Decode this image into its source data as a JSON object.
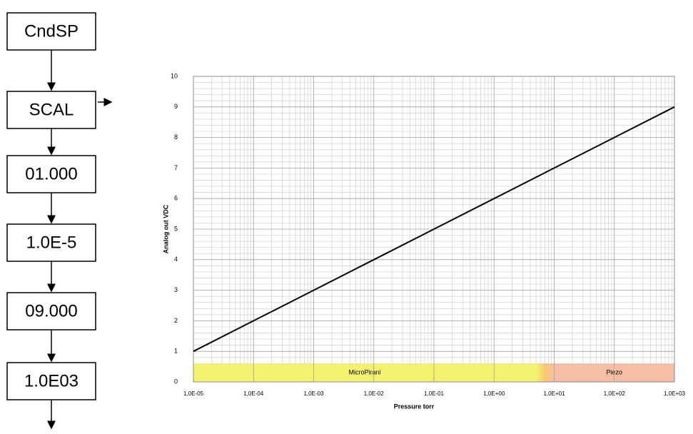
{
  "flow": {
    "nodes": [
      "CndSP",
      "SCAL",
      "01.000",
      "1.0E-5",
      "09.000",
      "1.0E03"
    ]
  },
  "chart_data": {
    "type": "line",
    "xscale": "log",
    "grid": true,
    "minor_grid": true,
    "x_label": "Pressure torr",
    "y_label": "Analog out VDC",
    "x": [
      1e-05,
      0.0001,
      0.001,
      0.01,
      0.1,
      1,
      10,
      100,
      1000
    ],
    "values": [
      1,
      2,
      3,
      4,
      5,
      6,
      7,
      8,
      9
    ],
    "color": "#000000",
    "xlim": [
      1e-05,
      1000
    ],
    "xticks": [
      {
        "value": 1e-05,
        "label": "1,0E-05"
      },
      {
        "value": 0.0001,
        "label": "1,0E-04"
      },
      {
        "value": 0.001,
        "label": "1,0E-03"
      },
      {
        "value": 0.01,
        "label": "1,0E-02"
      },
      {
        "value": 0.1,
        "label": "1,0E-01"
      },
      {
        "value": 1,
        "label": "1,0E+00"
      },
      {
        "value": 10,
        "label": "1,0E+01"
      },
      {
        "value": 100,
        "label": "1,0E+02"
      },
      {
        "value": 1000,
        "label": "1,0E+03"
      }
    ],
    "ylim": [
      0,
      10
    ],
    "yticks": [
      0,
      1,
      2,
      3,
      4,
      5,
      6,
      7,
      8,
      9,
      10
    ],
    "region_height": 0.6,
    "regions": [
      {
        "label": "MicroPirani",
        "from": 1e-05,
        "to": 5,
        "color": "#f5f270"
      },
      {
        "label": "Piezo",
        "from": 10,
        "to": 1000,
        "color": "#f7bea6"
      }
    ]
  }
}
